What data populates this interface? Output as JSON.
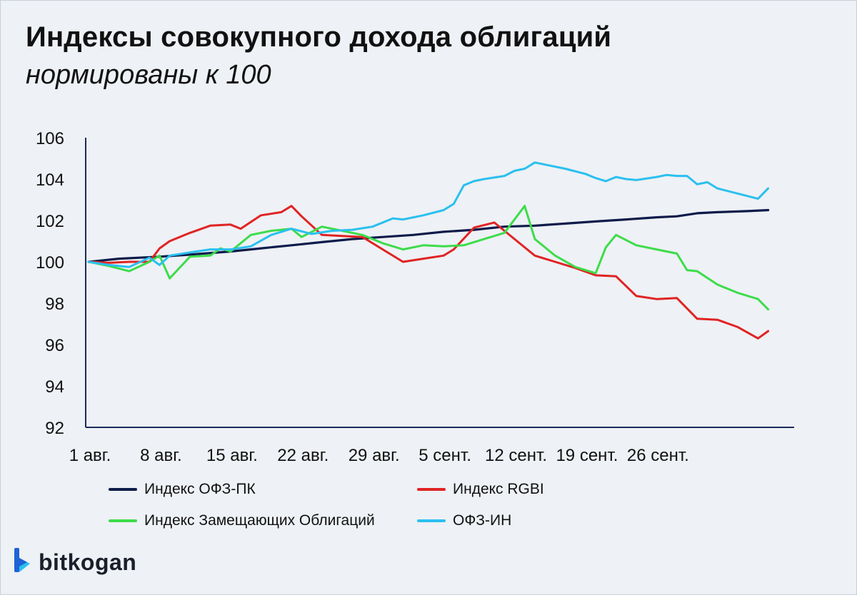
{
  "title": "Индексы совокупного дохода облигаций",
  "subtitle": "нормированы к 100",
  "brand": "bitkogan",
  "chart_data": {
    "type": "line",
    "ylim": [
      92,
      106
    ],
    "yticks": [
      92,
      94,
      96,
      98,
      100,
      102,
      104,
      106
    ],
    "xlim": [
      0,
      69
    ],
    "xticks": [
      {
        "x": 0,
        "label": "1 авг."
      },
      {
        "x": 7,
        "label": "8 авг."
      },
      {
        "x": 14,
        "label": "15 авг."
      },
      {
        "x": 21,
        "label": "22 авг."
      },
      {
        "x": 28,
        "label": "29 авг."
      },
      {
        "x": 35,
        "label": "5 сент."
      },
      {
        "x": 42,
        "label": "12 сент."
      },
      {
        "x": 49,
        "label": "19 сент."
      },
      {
        "x": 56,
        "label": "26 сент."
      }
    ],
    "grid": false,
    "legend_position": "bottom",
    "series": [
      {
        "name": "Индекс ОФЗ-ПК",
        "color": "#0d1b4a",
        "x": [
          0,
          3,
          7,
          10,
          14,
          17,
          20,
          23,
          26,
          29,
          32,
          35,
          38,
          41,
          44,
          47,
          50,
          53,
          56,
          58,
          60,
          62,
          65,
          67
        ],
        "y": [
          100.0,
          100.15,
          100.25,
          100.35,
          100.5,
          100.65,
          100.8,
          100.95,
          101.1,
          101.2,
          101.3,
          101.45,
          101.55,
          101.7,
          101.75,
          101.85,
          101.95,
          102.05,
          102.15,
          102.2,
          102.35,
          102.4,
          102.45,
          102.5
        ]
      },
      {
        "name": "Индекс RGBI",
        "color": "#e02323",
        "x": [
          0,
          2,
          4,
          6,
          7,
          8,
          10,
          12,
          14,
          15,
          17,
          19,
          20,
          21,
          23,
          25,
          27,
          29,
          31,
          33,
          35,
          36,
          38,
          40,
          42,
          44,
          46,
          48,
          50,
          52,
          54,
          56,
          58,
          60,
          62,
          64,
          66,
          67
        ],
        "y": [
          100.0,
          99.95,
          100.0,
          100.0,
          100.65,
          101.0,
          101.4,
          101.75,
          101.8,
          101.6,
          102.25,
          102.4,
          102.7,
          102.2,
          101.3,
          101.25,
          101.2,
          100.6,
          100.0,
          100.15,
          100.3,
          100.6,
          101.65,
          101.9,
          101.1,
          100.3,
          100.0,
          99.7,
          99.35,
          99.3,
          98.35,
          98.2,
          98.25,
          97.25,
          97.2,
          96.85,
          96.3,
          96.65
        ]
      },
      {
        "name": "Индекс Замещающих Облигаций",
        "color": "#3ddc4a",
        "x": [
          0,
          2,
          4,
          6,
          7,
          8,
          10,
          12,
          13,
          14,
          16,
          18,
          20,
          21,
          23,
          25,
          27,
          29,
          31,
          33,
          35,
          37,
          39,
          41,
          43,
          44,
          46,
          48,
          50,
          51,
          52,
          54,
          56,
          58,
          59,
          60,
          62,
          64,
          66,
          67
        ],
        "y": [
          100.0,
          99.8,
          99.55,
          100.0,
          100.3,
          99.2,
          100.25,
          100.3,
          100.65,
          100.5,
          101.3,
          101.5,
          101.6,
          101.2,
          101.7,
          101.5,
          101.3,
          100.9,
          100.6,
          100.8,
          100.75,
          100.8,
          101.1,
          101.4,
          102.7,
          101.1,
          100.3,
          99.75,
          99.45,
          100.7,
          101.3,
          100.8,
          100.6,
          100.4,
          99.6,
          99.55,
          98.9,
          98.5,
          98.2,
          97.7
        ]
      },
      {
        "name": "ОФЗ-ИН",
        "color": "#2ac0ef",
        "x": [
          0,
          2,
          4,
          6,
          7,
          8,
          10,
          12,
          14,
          16,
          18,
          20,
          22,
          24,
          26,
          28,
          30,
          31,
          33,
          35,
          36,
          37,
          38,
          39,
          41,
          42,
          43,
          44,
          45,
          47,
          49,
          50,
          51,
          52,
          53,
          54,
          56,
          57,
          58,
          59,
          60,
          61,
          62,
          64,
          66,
          67
        ],
        "y": [
          100.0,
          99.85,
          99.75,
          100.2,
          99.85,
          100.3,
          100.45,
          100.6,
          100.6,
          100.75,
          101.3,
          101.6,
          101.35,
          101.5,
          101.55,
          101.7,
          102.1,
          102.05,
          102.25,
          102.5,
          102.8,
          103.7,
          103.9,
          104.0,
          104.15,
          104.4,
          104.5,
          104.8,
          104.7,
          104.5,
          104.25,
          104.05,
          103.9,
          104.1,
          104.0,
          103.95,
          104.1,
          104.2,
          104.15,
          104.15,
          103.75,
          103.85,
          103.55,
          103.3,
          103.05,
          103.55
        ]
      }
    ]
  }
}
